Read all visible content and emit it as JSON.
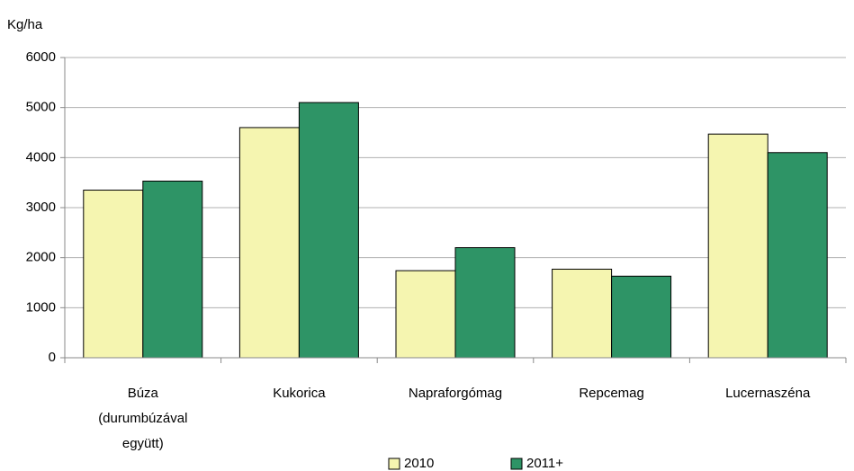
{
  "chart_data": {
    "type": "bar",
    "ylabel": "Kg/ha",
    "categories": [
      "Búza (durumbúzával együtt)",
      "Kukorica",
      "Napraforgómag",
      "Repcemag",
      "Lucernaszéna"
    ],
    "series": [
      {
        "name": "2010",
        "color": "#f5f5b0",
        "values": [
          3350,
          4600,
          1740,
          1770,
          4470
        ]
      },
      {
        "name": "2011+",
        "color": "#2e9466",
        "values": [
          3530,
          5100,
          2200,
          1630,
          4100
        ]
      }
    ],
    "ylim": [
      0,
      6000
    ],
    "yticks": [
      0,
      1000,
      2000,
      3000,
      4000,
      5000,
      6000
    ],
    "grid": true,
    "legend": "bottom"
  }
}
